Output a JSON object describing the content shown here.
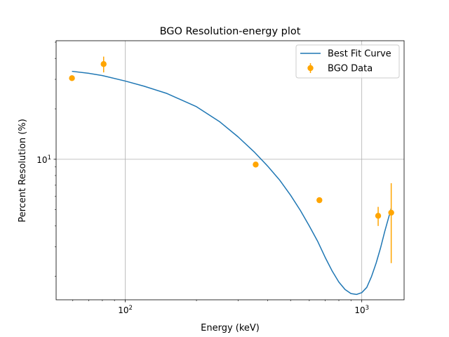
{
  "chart_data": {
    "type": "scatter",
    "title": "BGO Resolution-energy plot",
    "xlabel": "Energy (keV)",
    "ylabel": "Percent Resolution (%)",
    "xscale": "log",
    "yscale": "log",
    "xlim": [
      51,
      1510
    ],
    "ylim": [
      1.45,
      51
    ],
    "grid": true,
    "legend_position": "top-right",
    "x_ticks": [
      {
        "value": 100,
        "base": "10",
        "exp": "2"
      },
      {
        "value": 1000,
        "base": "10",
        "exp": "3"
      }
    ],
    "y_ticks": [
      {
        "value": 10,
        "base": "10",
        "exp": "1"
      }
    ],
    "series": [
      {
        "name": "Best Fit Curve",
        "kind": "line",
        "color": "#1f77b4",
        "x": [
          59.5,
          70,
          80,
          100,
          120,
          150,
          200,
          250,
          300,
          350,
          400,
          450,
          500,
          550,
          600,
          650,
          700,
          750,
          800,
          850,
          900,
          950,
          1000,
          1050,
          1100,
          1150,
          1200,
          1250,
          1332
        ],
        "y": [
          33.5,
          32.6,
          31.6,
          29.3,
          27.3,
          24.7,
          20.6,
          16.8,
          13.6,
          11.1,
          9.1,
          7.5,
          6.1,
          4.95,
          4.0,
          3.25,
          2.6,
          2.15,
          1.85,
          1.67,
          1.58,
          1.56,
          1.6,
          1.72,
          2.0,
          2.4,
          2.95,
          3.7,
          5.1
        ]
      },
      {
        "name": "BGO Data",
        "kind": "errorbar",
        "color": "#ffa500",
        "points": [
          {
            "x": 59.5,
            "y": 30.5,
            "err": 1.0
          },
          {
            "x": 81,
            "y": 37.0,
            "err": 4.0
          },
          {
            "x": 356,
            "y": 9.3,
            "err": 0.3
          },
          {
            "x": 662,
            "y": 5.7,
            "err": 0.15
          },
          {
            "x": 1173,
            "y": 4.6,
            "err": 0.6
          },
          {
            "x": 1332,
            "y": 4.8,
            "err": 2.4
          }
        ]
      }
    ]
  }
}
